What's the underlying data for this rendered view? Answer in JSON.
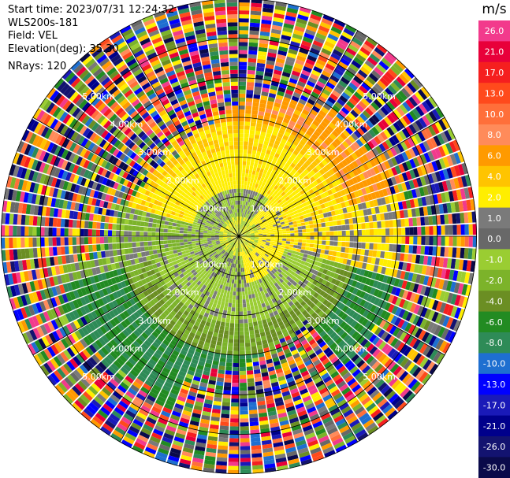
{
  "info": {
    "start_time": "Start time: 2023/07/31 12:24:32",
    "device": "WLS200s-181",
    "field": "Field: VEL",
    "elevation": "Elevation(deg): 35.30",
    "nrays": "NRays: 120"
  },
  "colorbar": {
    "unit": "m/s",
    "entries": [
      {
        "label": "26.0",
        "color": "#f23a8c"
      },
      {
        "label": "21.0",
        "color": "#e8003a"
      },
      {
        "label": "17.0",
        "color": "#f51f1f"
      },
      {
        "label": "13.0",
        "color": "#ff4a1c"
      },
      {
        "label": "10.0",
        "color": "#ff6f3a"
      },
      {
        "label": "8.0",
        "color": "#ff8b5a"
      },
      {
        "label": "6.0",
        "color": "#ff9a00"
      },
      {
        "label": "4.0",
        "color": "#ffc400"
      },
      {
        "label": "2.0",
        "color": "#ffee00"
      },
      {
        "label": "1.0",
        "color": "#7a7a7a"
      },
      {
        "label": "0.0",
        "color": "#686868"
      },
      {
        "label": "-1.0",
        "color": "#9acd32"
      },
      {
        "label": "-2.0",
        "color": "#7cb32a"
      },
      {
        "label": "-4.0",
        "color": "#6b8e23"
      },
      {
        "label": "-6.0",
        "color": "#228b22"
      },
      {
        "label": "-8.0",
        "color": "#2e8b57"
      },
      {
        "label": "-10.0",
        "color": "#1e6fd0"
      },
      {
        "label": "-13.0",
        "color": "#0000ff"
      },
      {
        "label": "-17.0",
        "color": "#1a1ab8"
      },
      {
        "label": "-21.0",
        "color": "#00008b"
      },
      {
        "label": "-26.0",
        "color": "#131370"
      },
      {
        "label": "-30.0",
        "color": "#0a0a4a"
      }
    ]
  },
  "range_labels": [
    "1.00km",
    "2.00km",
    "3.00km",
    "4.00km",
    "5.00km"
  ],
  "plot": {
    "max_range_km": 6.0,
    "num_rays": 120,
    "gate_km": 0.1,
    "ring_step_km": 1.0
  }
}
